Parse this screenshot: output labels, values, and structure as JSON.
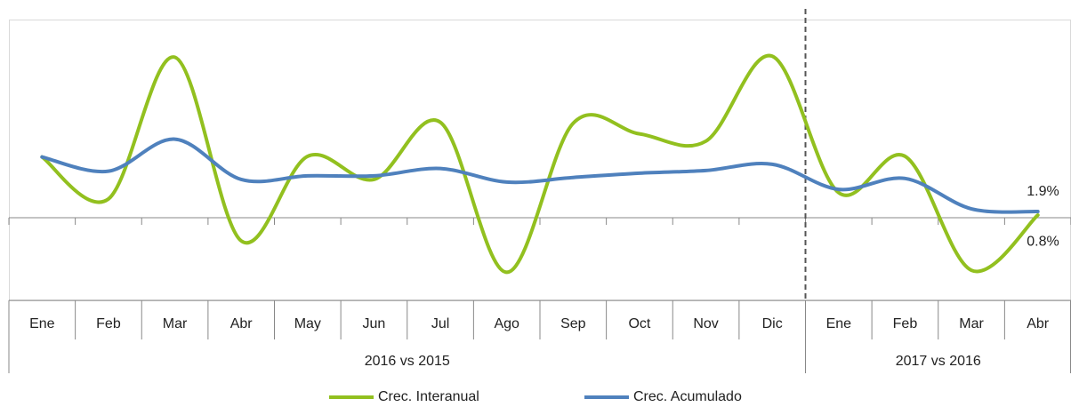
{
  "chart_data": {
    "type": "line",
    "category_groups": [
      {
        "name": "2016 vs 2015",
        "categories": [
          "Ene",
          "Feb",
          "Mar",
          "Abr",
          "May",
          "Jun",
          "Jul",
          "Ago",
          "Sep",
          "Oct",
          "Nov",
          "Dic"
        ]
      },
      {
        "name": "2017 vs 2016",
        "categories": [
          "Ene",
          "Feb",
          "Mar",
          "Abr"
        ]
      }
    ],
    "series": [
      {
        "name": "Crec. Interanual",
        "color": "#92c01f",
        "values": [
          18.4,
          5.7,
          48.6,
          -7.0,
          18.6,
          11.6,
          28.9,
          -16.5,
          28.6,
          25.4,
          23.2,
          48.9,
          7.6,
          18.6,
          -15.9,
          0.8
        ],
        "value_labels": [
          null,
          null,
          null,
          null,
          null,
          null,
          null,
          null,
          null,
          null,
          null,
          null,
          null,
          null,
          null,
          "0.8%"
        ]
      },
      {
        "name": "Crec. Acumulado",
        "color": "#4f81bd",
        "values": [
          18.4,
          14.1,
          23.8,
          11.6,
          12.7,
          12.7,
          14.9,
          10.8,
          12.2,
          13.5,
          14.3,
          16.2,
          8.6,
          11.9,
          2.7,
          1.9
        ],
        "value_labels": [
          null,
          null,
          null,
          null,
          null,
          null,
          null,
          null,
          null,
          null,
          null,
          null,
          null,
          null,
          null,
          "1.9%"
        ]
      }
    ],
    "ylim": [
      -25,
      60
    ],
    "grid": false
  }
}
